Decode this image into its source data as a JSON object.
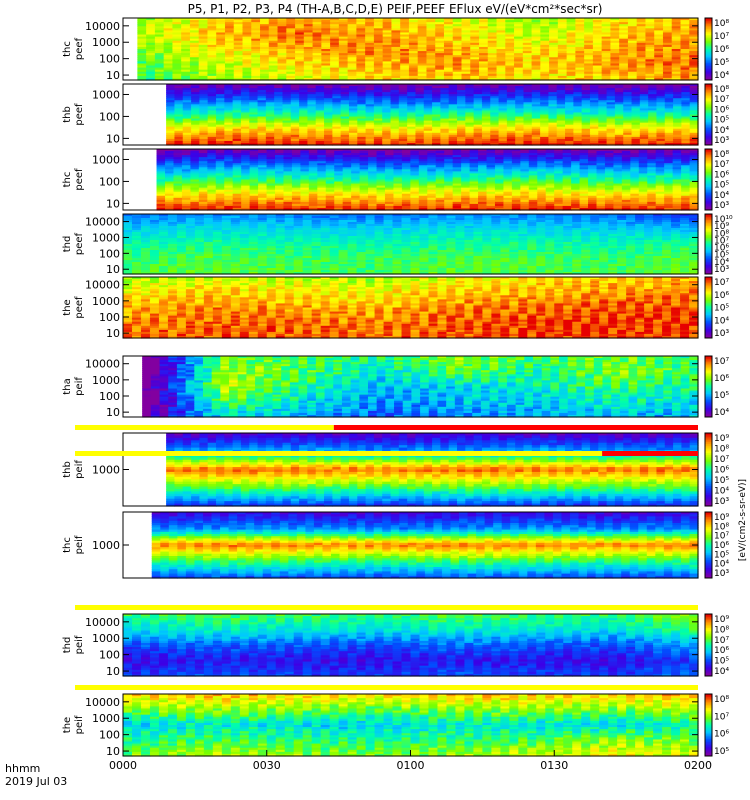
{
  "title": "P5, P1, P2, P3, P4 (TH-A,B,C,D,E) PEIF,PEEF EFlux eV/(eV*cm²*sec*sr)",
  "footer": {
    "format": "hhmm",
    "date": "2019 Jul 03"
  },
  "colorbar_unit_label": "[eV/(cm2-s-sr-eV)]",
  "chart_data": {
    "type": "heatmap",
    "x_axis": {
      "label": "hhmm",
      "range": [
        "0000",
        "0200"
      ],
      "ticks": [
        "0000",
        "0030",
        "0100",
        "0130",
        "0200"
      ]
    },
    "y_scale": "log",
    "colormap": "rainbow (violet-blue-cyan-green-yellow-red)",
    "panels": [
      {
        "name": "thc peef",
        "ylabel": [
          "thc",
          "peef"
        ],
        "yticks": [
          "10000",
          "1000",
          "100",
          "10"
        ],
        "yrange": [
          5,
          30000
        ],
        "cbar_ticks": [
          "10⁸",
          "10⁷",
          "10⁶",
          "10⁵",
          "10⁴"
        ],
        "data_start_hhmm": "0003",
        "flux": [
          [
            6.8,
            7.3,
            7.6,
            7.4,
            7.1,
            6.8,
            7.2,
            7.5
          ],
          [
            6.9,
            7.5,
            7.8,
            7.6,
            7.3,
            6.9,
            7.4,
            7.6
          ],
          [
            6.7,
            7.2,
            7.5,
            7.7,
            7.5,
            7.2,
            7.5,
            7.7
          ],
          [
            6.5,
            7.0,
            7.3,
            7.5,
            7.6,
            7.4,
            7.6,
            7.8
          ],
          [
            6.3,
            6.8,
            7.0,
            7.3,
            7.4,
            7.2,
            7.4,
            7.6
          ]
        ],
        "cmin": 4,
        "cmax": 8
      },
      {
        "name": "thb peef",
        "ylabel": [
          "thb",
          "peef"
        ],
        "yticks": [
          "1000",
          "100",
          "10"
        ],
        "yrange": [
          5,
          3000
        ],
        "cbar_ticks": [
          "10⁸",
          "10⁷",
          "10⁶",
          "10⁵",
          "10⁴",
          "10³"
        ],
        "data_start_hhmm": "0009",
        "flux": [
          [
            3.2,
            3.4,
            3.3,
            3.2,
            3.4,
            3.3,
            3.2,
            3.3
          ],
          [
            4.4,
            4.6,
            4.5,
            4.4,
            4.5,
            4.6,
            4.4,
            4.5
          ],
          [
            5.6,
            5.8,
            5.7,
            5.6,
            5.8,
            5.7,
            5.6,
            5.7
          ],
          [
            7.0,
            7.2,
            7.1,
            7.0,
            7.1,
            7.2,
            7.0,
            7.1
          ],
          [
            8.0,
            8.1,
            8.0,
            7.9,
            8.0,
            8.1,
            8.0,
            8.0
          ]
        ],
        "cmin": 3,
        "cmax": 8
      },
      {
        "name": "thc peef",
        "ylabel": [
          "thc",
          "peef"
        ],
        "yticks": [
          "1000",
          "100",
          "10"
        ],
        "yrange": [
          5,
          3000
        ],
        "cbar_ticks": [
          "10⁸",
          "10⁷",
          "10⁶",
          "10⁵",
          "10⁴",
          "10³"
        ],
        "data_start_hhmm": "0007",
        "flux": [
          [
            3.2,
            3.4,
            3.3,
            3.1,
            3.3,
            3.4,
            3.2,
            3.3
          ],
          [
            4.5,
            4.7,
            4.6,
            4.5,
            4.6,
            4.7,
            4.5,
            4.6
          ],
          [
            5.7,
            5.9,
            5.8,
            5.7,
            5.8,
            5.9,
            5.7,
            5.8
          ],
          [
            7.0,
            7.1,
            7.1,
            7.0,
            7.1,
            7.1,
            7.0,
            7.1
          ],
          [
            8.0,
            8.0,
            8.0,
            7.9,
            8.0,
            8.0,
            8.0,
            8.0
          ]
        ],
        "cmin": 3,
        "cmax": 8
      },
      {
        "name": "thd peef",
        "ylabel": [
          "thd",
          "peef"
        ],
        "yticks": [
          "10000",
          "1000",
          "100",
          "10"
        ],
        "yrange": [
          5,
          30000
        ],
        "cbar_ticks": [
          "10¹⁰",
          "10⁹",
          "10⁸",
          "10⁷",
          "10⁶",
          "10⁵",
          "10⁴",
          "10³"
        ],
        "data_start_hhmm": "0000",
        "flux": [
          [
            5.2,
            5.4,
            5.3,
            5.2,
            5.4,
            5.3,
            5.2,
            4.6
          ],
          [
            6.0,
            6.2,
            6.1,
            6.0,
            6.2,
            6.1,
            6.0,
            5.8
          ],
          [
            6.6,
            6.8,
            6.7,
            6.6,
            6.8,
            6.7,
            6.6,
            6.9
          ],
          [
            7.0,
            7.2,
            7.1,
            7.0,
            7.2,
            7.1,
            7.0,
            7.3
          ],
          [
            7.2,
            7.3,
            7.2,
            7.1,
            7.3,
            7.2,
            7.1,
            7.4
          ]
        ],
        "cmin": 3,
        "cmax": 10
      },
      {
        "name": "the peef",
        "ylabel": [
          "the",
          "peef"
        ],
        "yticks": [
          "10000",
          "1000",
          "100",
          "10"
        ],
        "yrange": [
          5,
          30000
        ],
        "cbar_ticks": [
          "10⁷",
          "10⁶",
          "10⁵",
          "10⁴",
          "10³"
        ],
        "data_start_hhmm": "0000",
        "flux": [
          [
            5.8,
            6.0,
            5.9,
            5.8,
            6.1,
            6.3,
            6.4,
            6.5
          ],
          [
            6.2,
            6.4,
            6.3,
            6.2,
            6.4,
            6.5,
            6.6,
            6.7
          ],
          [
            6.5,
            6.7,
            6.6,
            6.5,
            6.7,
            6.8,
            6.9,
            6.9
          ],
          [
            6.7,
            6.8,
            6.8,
            6.7,
            6.8,
            7.0,
            7.0,
            7.0
          ],
          [
            6.8,
            6.9,
            6.9,
            6.8,
            6.9,
            7.0,
            7.0,
            7.0
          ]
        ],
        "cmin": 3,
        "cmax": 7
      },
      {
        "name": "tha peif",
        "ylabel": [
          "tha",
          "peif"
        ],
        "yticks": [
          "10000",
          "1000",
          "100",
          "10"
        ],
        "yrange": [
          5,
          30000
        ],
        "cbar_ticks": [
          "10⁷",
          "10⁶",
          "10⁵",
          "10⁴"
        ],
        "data_start_hhmm": "0004",
        "flux": [
          [
            3.5,
            5.8,
            5.6,
            5.5,
            5.9,
            5.6,
            5.8,
            5.5
          ],
          [
            3.3,
            6.0,
            5.7,
            5.2,
            5.8,
            5.4,
            5.9,
            5.6
          ],
          [
            3.6,
            6.1,
            5.5,
            5.0,
            5.1,
            5.3,
            5.6,
            5.4
          ],
          [
            3.4,
            5.7,
            5.2,
            4.8,
            5.0,
            5.1,
            5.3,
            5.2
          ],
          [
            3.8,
            5.2,
            4.9,
            4.6,
            4.7,
            4.9,
            5.0,
            4.9
          ]
        ],
        "cmin": 3.5,
        "cmax": 7,
        "status_bar": {
          "colors": [
            "yellow",
            "red"
          ],
          "switch_hhmm": "0044"
        }
      },
      {
        "name": "thb peif",
        "ylabel": [
          "thb",
          "peif"
        ],
        "yticks": [
          "1000"
        ],
        "yrange": [
          200,
          5000
        ],
        "cbar_ticks": [
          "10⁹",
          "10⁸",
          "10⁷",
          "10⁶",
          "10⁵",
          "10⁴",
          "10³"
        ],
        "data_start_hhmm": "0009",
        "flux": [
          [
            3.6,
            3.8,
            3.7,
            3.6,
            3.8,
            3.7,
            3.6,
            3.7
          ],
          [
            5.2,
            5.4,
            5.3,
            5.2,
            5.3,
            5.4,
            5.2,
            5.3
          ],
          [
            8.6,
            8.7,
            8.6,
            8.6,
            8.7,
            8.6,
            8.6,
            8.7
          ],
          [
            6.6,
            6.8,
            6.7,
            6.6,
            6.8,
            6.7,
            6.6,
            6.7
          ],
          [
            4.4,
            4.6,
            4.5,
            4.4,
            4.6,
            4.5,
            4.4,
            4.5
          ]
        ],
        "cmin": 3,
        "cmax": 9,
        "status_bar": {
          "colors": [
            "yellow",
            "red"
          ],
          "switch_hhmm": "0140"
        }
      },
      {
        "name": "thc peif",
        "ylabel": [
          "thc",
          "peif"
        ],
        "yticks": [
          "1000"
        ],
        "yrange": [
          200,
          5000
        ],
        "cbar_ticks": [
          "10⁹",
          "10⁸",
          "10⁷",
          "10⁶",
          "10⁵",
          "10⁴",
          "10³"
        ],
        "data_start_hhmm": "0006",
        "flux": [
          [
            3.8,
            4.0,
            3.9,
            3.8,
            4.0,
            3.9,
            3.8,
            3.9
          ],
          [
            5.0,
            5.2,
            5.1,
            5.0,
            5.1,
            5.2,
            5.0,
            5.1
          ],
          [
            8.5,
            8.6,
            8.5,
            8.5,
            8.6,
            8.5,
            8.5,
            8.6
          ],
          [
            6.4,
            6.6,
            6.5,
            6.4,
            6.6,
            6.5,
            6.4,
            6.5
          ],
          [
            4.6,
            4.8,
            4.7,
            4.6,
            4.8,
            4.7,
            4.6,
            4.7
          ]
        ],
        "cmin": 3,
        "cmax": 9,
        "status_bar": {
          "colors": [
            "yellow"
          ]
        }
      },
      {
        "name": "thd peif",
        "ylabel": [
          "thd",
          "peif"
        ],
        "yticks": [
          "10000",
          "1000",
          "100",
          "10"
        ],
        "yrange": [
          5,
          30000
        ],
        "cbar_ticks": [
          "10⁹",
          "10⁸",
          "10⁷",
          "10⁶",
          "10⁵",
          "10⁴"
        ],
        "data_start_hhmm": "0000",
        "flux": [
          [
            6.6,
            6.8,
            6.7,
            6.6,
            6.8,
            6.7,
            6.6,
            7.2
          ],
          [
            6.0,
            6.2,
            6.1,
            6.0,
            6.2,
            6.1,
            6.0,
            6.6
          ],
          [
            5.0,
            5.2,
            5.1,
            5.0,
            5.2,
            5.1,
            5.0,
            5.6
          ],
          [
            4.4,
            4.6,
            4.5,
            4.4,
            4.6,
            4.5,
            4.4,
            4.9
          ],
          [
            4.8,
            5.0,
            4.9,
            4.8,
            5.0,
            4.9,
            4.8,
            5.2
          ]
        ],
        "cmin": 3.5,
        "cmax": 9,
        "status_bar": {
          "colors": [
            "yellow"
          ]
        }
      },
      {
        "name": "the peif",
        "ylabel": [
          "the",
          "peif"
        ],
        "yticks": [
          "10000",
          "1000",
          "100",
          "10"
        ],
        "yrange": [
          5,
          30000
        ],
        "cbar_ticks": [
          "10⁸",
          "10⁷",
          "10⁶",
          "10⁵"
        ],
        "data_start_hhmm": "0000",
        "flux": [
          [
            7.6,
            7.8,
            7.7,
            7.6,
            7.8,
            7.7,
            7.6,
            7.9
          ],
          [
            7.0,
            7.1,
            7.0,
            6.9,
            7.0,
            7.1,
            7.0,
            7.2
          ],
          [
            6.2,
            6.4,
            6.3,
            6.2,
            6.4,
            6.3,
            6.2,
            6.5
          ],
          [
            6.6,
            6.8,
            6.7,
            6.6,
            6.7,
            6.8,
            7.1,
            7.0
          ],
          [
            7.0,
            7.2,
            7.1,
            7.0,
            7.1,
            7.3,
            7.5,
            7.3
          ]
        ],
        "cmin": 4.5,
        "cmax": 8.3
      }
    ]
  }
}
